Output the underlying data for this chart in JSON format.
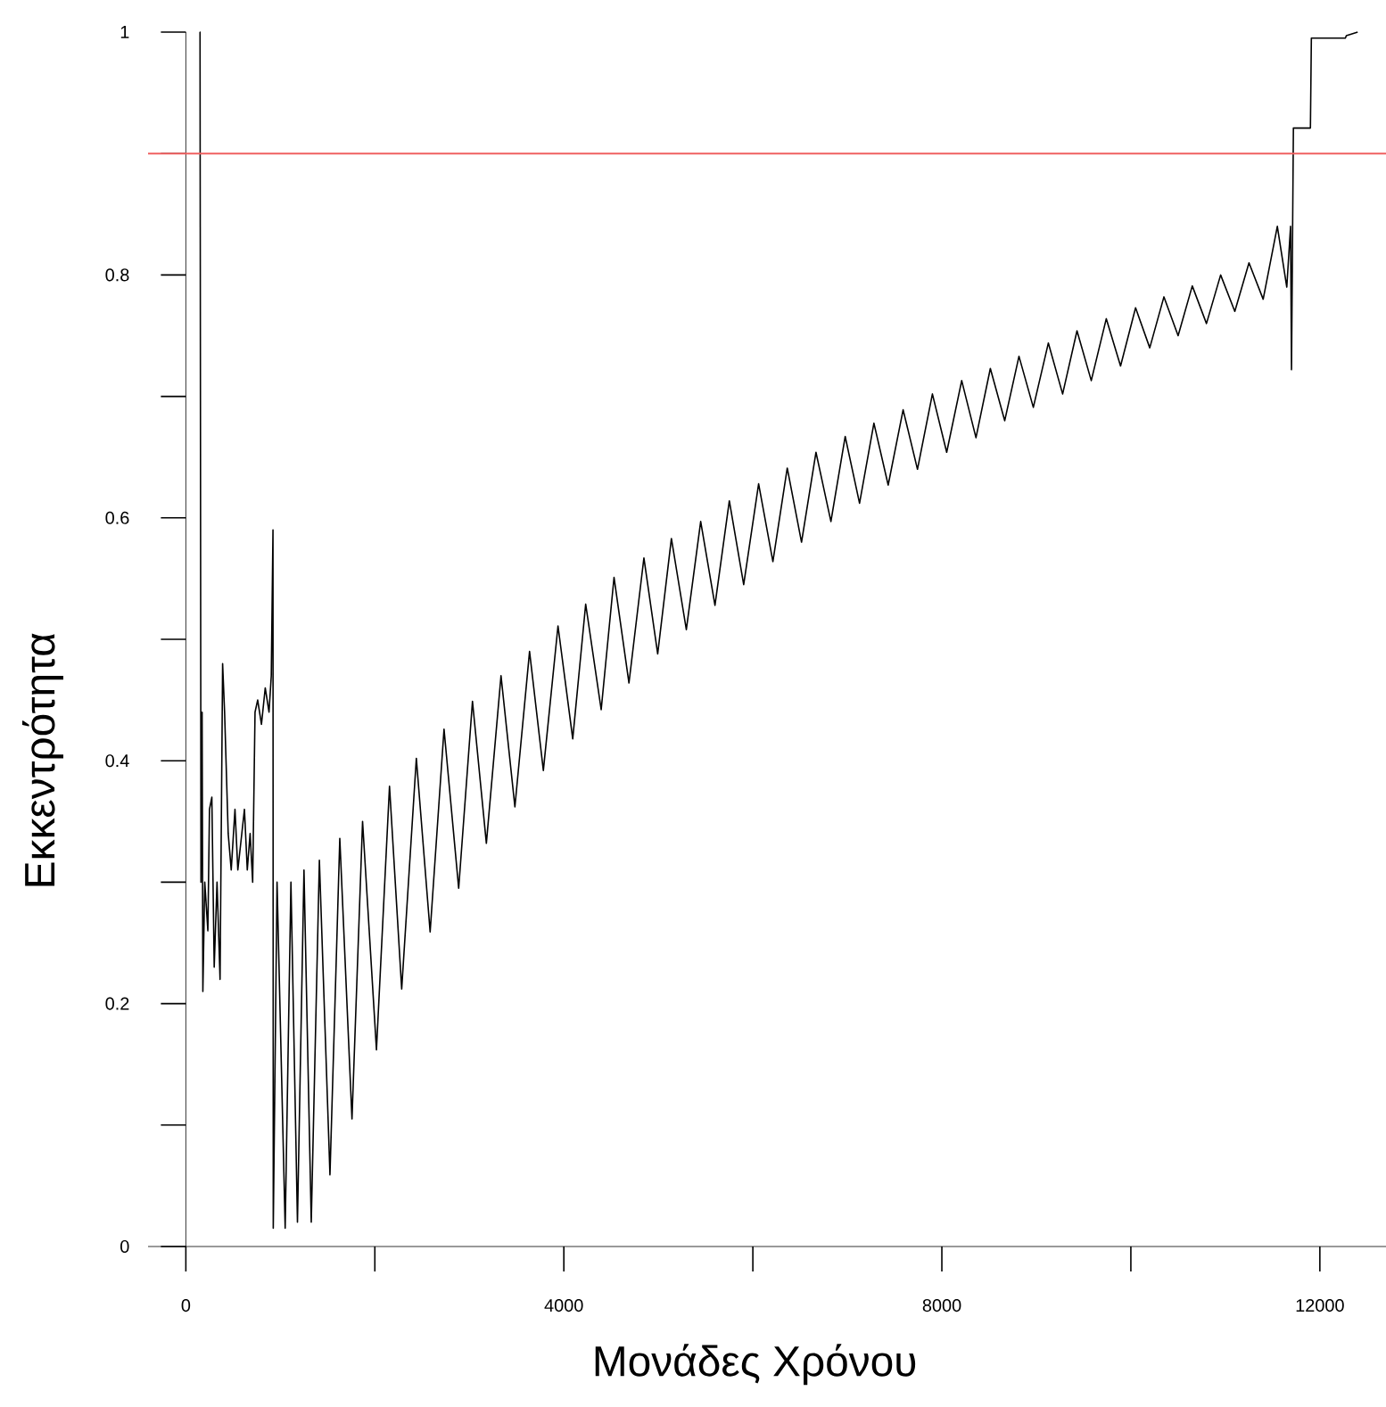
{
  "chart_data": {
    "type": "line",
    "xlabel": "Μονάδες Χρόνου",
    "ylabel": "Εκκεντρότητα",
    "xlim": [
      -400,
      12700
    ],
    "ylim": [
      0,
      1
    ],
    "xticks": [
      0,
      {
        "value": 2000,
        "label": null
      },
      4000,
      {
        "value": 6000,
        "label": null
      },
      8000,
      {
        "value": 10000,
        "label": null
      },
      12000
    ],
    "yticks": [
      0,
      {
        "value": 0.1,
        "label": null
      },
      0.2,
      {
        "value": 0.3,
        "label": null
      },
      0.4,
      {
        "value": 0.5,
        "label": null
      },
      0.6,
      {
        "value": 0.7,
        "label": null
      },
      0.8,
      {
        "value": 0.9,
        "label": null
      },
      1
    ],
    "marker": "none",
    "line_style": "solid",
    "ref_lines": [
      {
        "axis": "y",
        "value": 0.9,
        "color": "#f06060"
      }
    ],
    "x": [
      146,
      150,
      160,
      172,
      180,
      200,
      233,
      250,
      275,
      300,
      330,
      362,
      389,
      410,
      448,
      480,
      520,
      550,
      578,
      620,
      650,
      680,
      707,
      732,
      760,
      800,
      840,
      880,
      904,
      922,
      925,
      965,
      1051,
      1112,
      1181,
      1250,
      1327,
      1413,
      1525,
      1629,
      1758,
      1870,
      2017,
      2155,
      2284,
      2439,
      2585,
      2732,
      2887,
      3033,
      3180,
      3335,
      3482,
      3637,
      3783,
      3938,
      4094,
      4231,
      4395,
      4531,
      4689,
      4847,
      4993,
      5138,
      5296,
      5448,
      5599,
      5751,
      5903,
      6061,
      6212,
      6364,
      6515,
      6668,
      6826,
      6977,
      7129,
      7281,
      7432,
      7590,
      7742,
      7900,
      8051,
      8210,
      8361,
      8513,
      8665,
      8816,
      8968,
      9127,
      9278,
      9430,
      9581,
      9740,
      9891,
      10050,
      10200,
      10350,
      10500,
      10650,
      10800,
      10950,
      11100,
      11250,
      11400,
      11550,
      11650,
      11690,
      11700,
      11720,
      11730,
      11900,
      11910,
      12270,
      12280,
      12400
    ],
    "series": [
      {
        "color": "#000000",
        "values": [
          1.0,
          1.0,
          0.3,
          0.44,
          0.21,
          0.3,
          0.26,
          0.36,
          0.37,
          0.23,
          0.3,
          0.22,
          0.48,
          0.44,
          0.34,
          0.31,
          0.36,
          0.31,
          0.33,
          0.36,
          0.31,
          0.34,
          0.3,
          0.44,
          0.45,
          0.43,
          0.46,
          0.44,
          0.47,
          0.59,
          0.015,
          0.3,
          0.015,
          0.3,
          0.02,
          0.31,
          0.02,
          0.318,
          0.059,
          0.336,
          0.105,
          0.35,
          0.162,
          0.379,
          0.212,
          0.402,
          0.259,
          0.426,
          0.295,
          0.449,
          0.332,
          0.47,
          0.362,
          0.49,
          0.392,
          0.511,
          0.418,
          0.529,
          0.442,
          0.551,
          0.464,
          0.567,
          0.488,
          0.583,
          0.508,
          0.597,
          0.528,
          0.614,
          0.545,
          0.628,
          0.564,
          0.641,
          0.58,
          0.654,
          0.597,
          0.667,
          0.612,
          0.678,
          0.627,
          0.689,
          0.64,
          0.702,
          0.654,
          0.713,
          0.666,
          0.723,
          0.68,
          0.733,
          0.691,
          0.744,
          0.702,
          0.754,
          0.713,
          0.764,
          0.725,
          0.773,
          0.74,
          0.782,
          0.75,
          0.791,
          0.76,
          0.8,
          0.77,
          0.81,
          0.78,
          0.84,
          0.79,
          0.84,
          0.722,
          0.921,
          0.921,
          0.921,
          0.995,
          0.995,
          0.997,
          1.0
        ]
      }
    ]
  }
}
